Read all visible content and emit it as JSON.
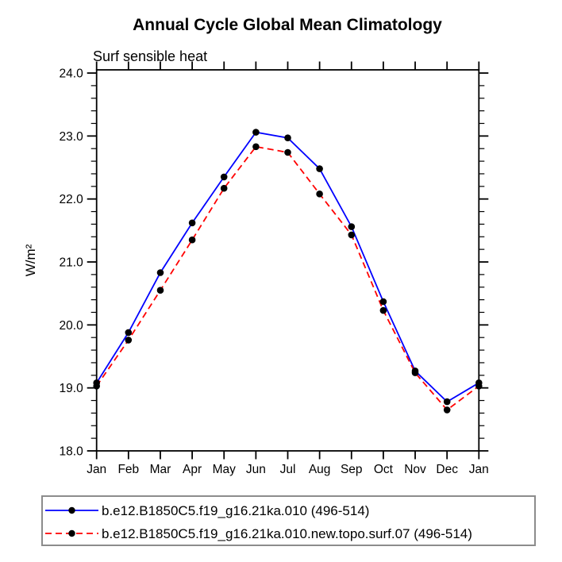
{
  "chart_data": {
    "type": "line",
    "title": "Annual Cycle Global Mean Climatology",
    "subtitle": "Surf sensible heat",
    "ylabel": "W/m²",
    "x_categories": [
      "Jan",
      "Feb",
      "Mar",
      "Apr",
      "May",
      "Jun",
      "Jul",
      "Aug",
      "Sep",
      "Oct",
      "Nov",
      "Dec",
      "Jan"
    ],
    "ylim": [
      18.0,
      24.0
    ],
    "ytick_major_interval": 1.0,
    "ytick_minor_interval": 0.2,
    "ytick_labels": [
      "18.0",
      "19.0",
      "20.0",
      "21.0",
      "22.0",
      "23.0",
      "24.0"
    ],
    "grid": false,
    "legend_position": "bottom-left",
    "axis_color": "#000000",
    "series": [
      {
        "name": "b.e12.B1850C5.f19_g16.21ka.010 (496-514)",
        "color": "#0000ff",
        "style": "solid",
        "marker": "circle",
        "marker_color": "#000000",
        "values": [
          19.08,
          19.88,
          20.83,
          21.62,
          22.35,
          23.06,
          22.97,
          22.48,
          21.56,
          20.37,
          19.27,
          18.78,
          19.08
        ]
      },
      {
        "name": "b.e12.B1850C5.f19_g16.21ka.010.new.topo.surf.07 (496-514)",
        "color": "#ff0000",
        "style": "dashed",
        "marker": "circle",
        "marker_color": "#000000",
        "values": [
          19.03,
          19.76,
          20.55,
          21.35,
          22.17,
          22.83,
          22.74,
          22.08,
          21.43,
          20.23,
          19.24,
          18.65,
          19.03
        ]
      }
    ]
  }
}
